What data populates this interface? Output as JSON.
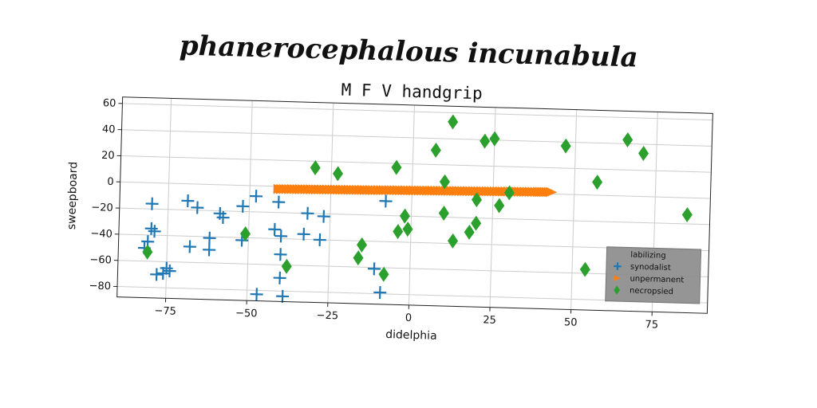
{
  "chart_data": {
    "type": "scatter",
    "suptitle": "phanerocephalous incunabula",
    "title": "M F V handgrip",
    "xlabel": "didelphia",
    "ylabel": "sweepboard",
    "xlim": [
      -90,
      92
    ],
    "ylim": [
      -88,
      65
    ],
    "xticks": [
      -75,
      -50,
      -25,
      0,
      25,
      50,
      75
    ],
    "yticks": [
      -80,
      -60,
      -40,
      -20,
      0,
      20,
      40,
      60
    ],
    "grid": true,
    "legend": {
      "position": "lower-right",
      "title": "labilizing"
    },
    "series": [
      {
        "name": "synodalist",
        "marker": "plus",
        "color": "#1f77b4",
        "points": [
          [
            -80,
            -16
          ],
          [
            -79,
            -37
          ],
          [
            -80,
            -35
          ],
          [
            -81,
            -45
          ],
          [
            -82,
            -50
          ],
          [
            -78,
            -70
          ],
          [
            -76,
            -69
          ],
          [
            -74,
            -67
          ],
          [
            -75,
            -65
          ],
          [
            -69,
            -13
          ],
          [
            -66,
            -18
          ],
          [
            -68,
            -48
          ],
          [
            -62,
            -50
          ],
          [
            -62,
            -41
          ],
          [
            -59,
            -22
          ],
          [
            -58,
            -25
          ],
          [
            -52,
            -16
          ],
          [
            -52,
            -42
          ],
          [
            -48,
            -8
          ],
          [
            -47,
            -83
          ],
          [
            -41,
            -12
          ],
          [
            -42,
            -33
          ],
          [
            -40,
            -38
          ],
          [
            -40,
            -52
          ],
          [
            -40,
            -70
          ],
          [
            -39,
            -84
          ],
          [
            -33,
            -36
          ],
          [
            -32,
            -20
          ],
          [
            -27,
            -22
          ],
          [
            -28,
            -40
          ],
          [
            -11,
            -61
          ],
          [
            -9,
            -79
          ],
          [
            -8,
            -9
          ]
        ]
      },
      {
        "name": "unpermanent",
        "marker": "triangle",
        "color": "#ff7f0e",
        "x_range": [
          -41,
          43
        ],
        "points": [
          [
            -41,
            -2.1
          ],
          [
            -36,
            -1.9
          ],
          [
            -31,
            -1.7
          ],
          [
            -26,
            -1.5
          ],
          [
            -21,
            -1.3
          ],
          [
            -16,
            -1.1
          ],
          [
            -11,
            -0.9
          ],
          [
            -6,
            -0.6
          ],
          [
            -1,
            -0.4
          ],
          [
            4,
            -0.2
          ],
          [
            9,
            0.0
          ],
          [
            14,
            0.2
          ],
          [
            19,
            0.4
          ],
          [
            24,
            0.6
          ],
          [
            29,
            0.8
          ],
          [
            34,
            1.0
          ],
          [
            39,
            1.2
          ],
          [
            43,
            1.4
          ]
        ]
      },
      {
        "name": "necropsied",
        "marker": "diamond",
        "color": "#2ca02c",
        "points": [
          [
            -81,
            -53
          ],
          [
            -51,
            -37
          ],
          [
            -38,
            -61
          ],
          [
            -30,
            15
          ],
          [
            -23,
            11
          ],
          [
            -15,
            -43
          ],
          [
            -16,
            -53
          ],
          [
            -8,
            -65
          ],
          [
            -5,
            17
          ],
          [
            -4,
            -32
          ],
          [
            -2,
            -20
          ],
          [
            -1,
            -30
          ],
          [
            7,
            31
          ],
          [
            10,
            7
          ],
          [
            10,
            -17
          ],
          [
            12,
            53
          ],
          [
            13,
            -38
          ],
          [
            18,
            -31
          ],
          [
            20,
            -6
          ],
          [
            20,
            -24
          ],
          [
            22,
            39
          ],
          [
            25,
            41
          ],
          [
            27,
            -10
          ],
          [
            30,
            0
          ],
          [
            47,
            37
          ],
          [
            54,
            -57
          ],
          [
            57,
            10
          ],
          [
            66,
            43
          ],
          [
            71,
            33
          ],
          [
            85,
            -13
          ]
        ]
      }
    ]
  }
}
